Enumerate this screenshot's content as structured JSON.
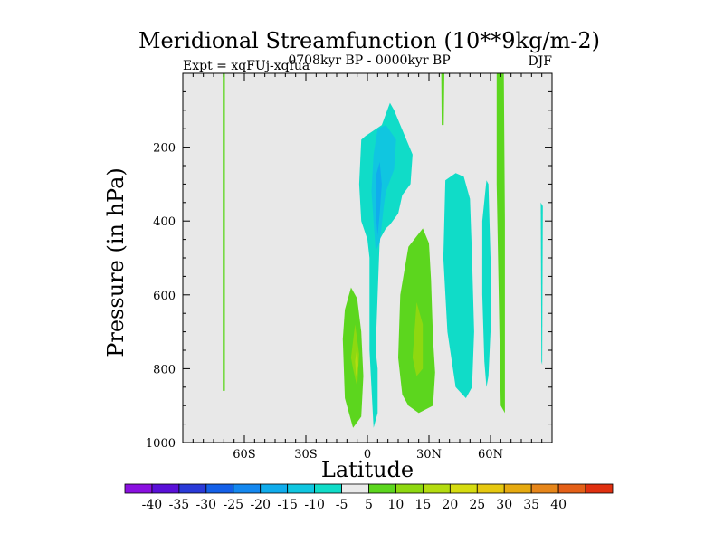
{
  "chart_data": {
    "type": "contour",
    "title": "Meridional Streamfunction (10**9kg/m-2)",
    "left_label": "Expt = xqFUj-xqfua",
    "center_label": "0708kyr BP - 0000kyr BP",
    "right_label": "DJF",
    "xlabel": "Latitude",
    "ylabel": "Pressure (in hPa)",
    "xlim": [
      -90,
      90
    ],
    "ylim": [
      0,
      1000
    ],
    "y_inverted": true,
    "x_ticks": [
      {
        "value": -60,
        "label": "60S"
      },
      {
        "value": -30,
        "label": "30S"
      },
      {
        "value": 0,
        "label": "0"
      },
      {
        "value": 30,
        "label": "30N"
      },
      {
        "value": 60,
        "label": "60N"
      }
    ],
    "y_ticks": [
      {
        "value": 200,
        "label": "200"
      },
      {
        "value": 400,
        "label": "400"
      },
      {
        "value": 600,
        "label": "600"
      },
      {
        "value": 800,
        "label": "800"
      },
      {
        "value": 1000,
        "label": "1000"
      }
    ],
    "background_color": "#e8e8e8",
    "colorbar": {
      "colors": [
        "#8a10e0",
        "#5a10d8",
        "#2a3ad8",
        "#1460e8",
        "#1488f0",
        "#10acec",
        "#10c6e0",
        "#10dcc8",
        "#eaeaea",
        "#5cd61e",
        "#8ed810",
        "#b4dc10",
        "#d6dc10",
        "#e6c810",
        "#e6aa10",
        "#e6861a",
        "#e46018",
        "#e03010"
      ],
      "labels": [
        "-40",
        "-35",
        "-30",
        "-25",
        "-20",
        "-15",
        "-10",
        "-5",
        "5",
        "10",
        "15",
        "20",
        "25",
        "30",
        "35",
        "40"
      ]
    },
    "regions": [
      {
        "name": "southern-high-lat-positive",
        "level": 5,
        "color": "#5cd61e",
        "points": [
          [
            -70.5,
            0
          ],
          [
            -69.5,
            0
          ],
          [
            -69.5,
            860
          ],
          [
            -70.5,
            860
          ]
        ]
      },
      {
        "name": "southern-hadley-positive",
        "level": 5,
        "color": "#5cd61e",
        "points": [
          [
            -12,
            720
          ],
          [
            -11,
            640
          ],
          [
            -8,
            580
          ],
          [
            -5,
            610
          ],
          [
            -3,
            700
          ],
          [
            -2,
            820
          ],
          [
            -3,
            930
          ],
          [
            -7,
            960
          ],
          [
            -11,
            880
          ]
        ]
      },
      {
        "name": "southern-hadley-core",
        "level": 10,
        "color": "#8ed810",
        "points": [
          [
            -8,
            770
          ],
          [
            -6,
            680
          ],
          [
            -4,
            760
          ],
          [
            -5,
            850
          ],
          [
            -7,
            800
          ]
        ]
      },
      {
        "name": "southern-hadley-inner",
        "level": 15,
        "color": "#b4dc10",
        "points": [
          [
            -6,
            780
          ],
          [
            -5,
            740
          ],
          [
            -4.5,
            790
          ],
          [
            -5.5,
            820
          ]
        ]
      },
      {
        "name": "equatorial-negative",
        "level": -5,
        "color": "#10dcc8",
        "points": [
          [
            -3,
            180
          ],
          [
            -1,
            170
          ],
          [
            7,
            140
          ],
          [
            11,
            80
          ],
          [
            13,
            100
          ],
          [
            22,
            220
          ],
          [
            21,
            300
          ],
          [
            17,
            330
          ],
          [
            15,
            380
          ],
          [
            11,
            410
          ],
          [
            9,
            420
          ],
          [
            6,
            450
          ],
          [
            5,
            600
          ],
          [
            4,
            750
          ],
          [
            5,
            800
          ],
          [
            5,
            920
          ],
          [
            3,
            960
          ],
          [
            1,
            750
          ],
          [
            1,
            500
          ],
          [
            0,
            450
          ],
          [
            -3,
            400
          ],
          [
            -4,
            300
          ]
        ]
      },
      {
        "name": "equatorial-negative-core",
        "level": -10,
        "color": "#10c6e0",
        "points": [
          [
            3,
            220
          ],
          [
            5,
            150
          ],
          [
            9,
            140
          ],
          [
            14,
            180
          ],
          [
            13,
            260
          ],
          [
            9,
            320
          ],
          [
            8,
            360
          ],
          [
            6,
            460
          ],
          [
            4,
            480
          ],
          [
            3,
            400
          ],
          [
            2,
            320
          ]
        ]
      },
      {
        "name": "equatorial-negative-inner",
        "level": -15,
        "color": "#10acec",
        "points": [
          [
            4,
            280
          ],
          [
            6,
            240
          ],
          [
            7,
            300
          ],
          [
            6,
            380
          ],
          [
            5,
            440
          ],
          [
            4,
            380
          ]
        ]
      },
      {
        "name": "northern-hadley-positive",
        "level": 5,
        "color": "#5cd61e",
        "points": [
          [
            15,
            770
          ],
          [
            16,
            600
          ],
          [
            20,
            470
          ],
          [
            27,
            420
          ],
          [
            30,
            460
          ],
          [
            31,
            560
          ],
          [
            32,
            720
          ],
          [
            33,
            810
          ],
          [
            32,
            900
          ],
          [
            25,
            920
          ],
          [
            20,
            900
          ],
          [
            17,
            870
          ]
        ]
      },
      {
        "name": "northern-hadley-core",
        "level": 10,
        "color": "#8ed810",
        "points": [
          [
            22,
            770
          ],
          [
            24,
            620
          ],
          [
            27,
            680
          ],
          [
            27,
            800
          ],
          [
            24,
            820
          ]
        ]
      },
      {
        "name": "midlat-negative",
        "level": -5,
        "color": "#10dcc8",
        "points": [
          [
            38,
            290
          ],
          [
            43,
            270
          ],
          [
            47,
            280
          ],
          [
            50,
            340
          ],
          [
            51,
            500
          ],
          [
            52,
            700
          ],
          [
            51,
            850
          ],
          [
            48,
            880
          ],
          [
            43,
            850
          ],
          [
            39,
            700
          ],
          [
            37,
            500
          ]
        ]
      },
      {
        "name": "midlat-negative-narrow",
        "level": -5,
        "color": "#10dcc8",
        "points": [
          [
            58,
            290
          ],
          [
            59,
            300
          ],
          [
            60,
            500
          ],
          [
            60,
            700
          ],
          [
            59,
            820
          ],
          [
            58,
            850
          ],
          [
            57,
            780
          ],
          [
            56,
            600
          ],
          [
            56,
            400
          ]
        ]
      },
      {
        "name": "midlat-positive-column",
        "level": 5,
        "color": "#5cd61e",
        "points": [
          [
            63,
            0
          ],
          [
            66.5,
            0
          ],
          [
            67,
            400
          ],
          [
            67,
            800
          ],
          [
            67,
            920
          ],
          [
            65,
            900
          ],
          [
            64,
            600
          ],
          [
            63,
            300
          ]
        ]
      },
      {
        "name": "upper-positive-sliver",
        "level": 5,
        "color": "#5cd61e",
        "points": [
          [
            36,
            0
          ],
          [
            37.5,
            0
          ],
          [
            37.2,
            140
          ],
          [
            36.2,
            140
          ]
        ]
      },
      {
        "name": "polar-negative-sliver",
        "level": -5,
        "color": "#10dcc8",
        "points": [
          [
            84.5,
            350
          ],
          [
            85.5,
            360
          ],
          [
            85.2,
            790
          ],
          [
            84.8,
            780
          ]
        ]
      }
    ]
  }
}
